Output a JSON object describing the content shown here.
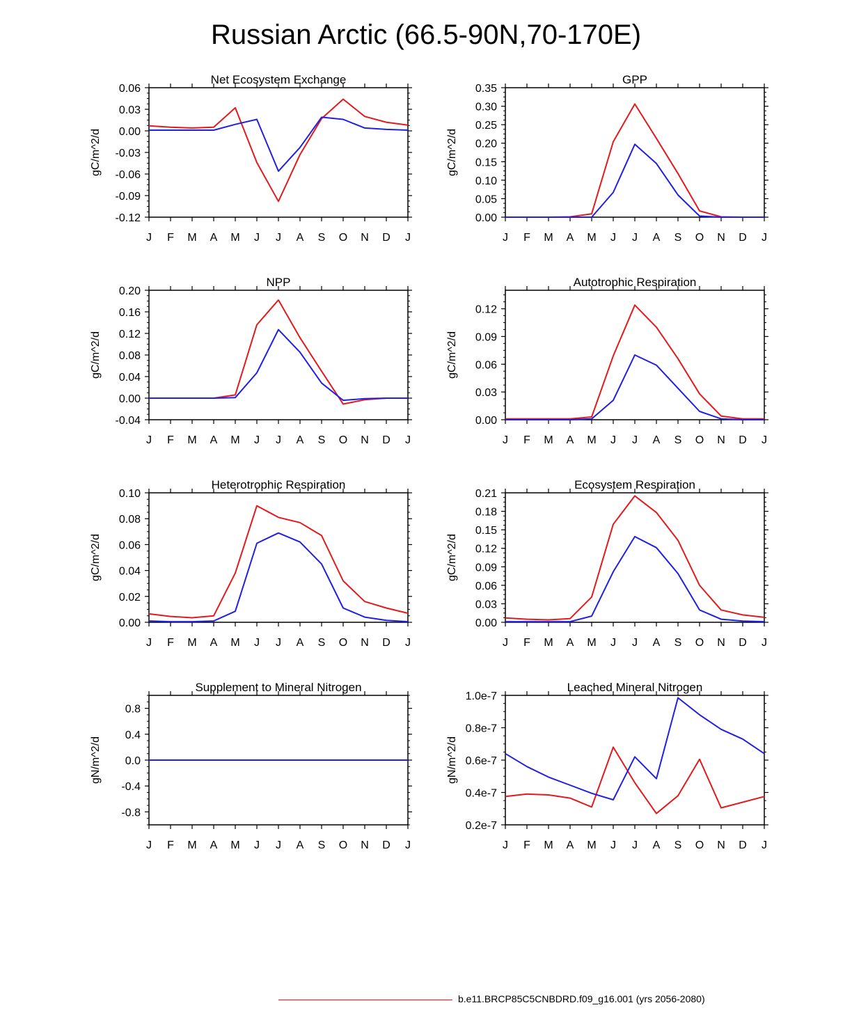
{
  "page": {
    "title": "Russian Arctic (66.5-90N,70-170E)",
    "legend": [
      {
        "label": "b.e11.BRCP85C5CNBDRD.f09_g16.001 (yrs 2056-2080)",
        "color": "#e31a1c"
      }
    ]
  },
  "chart_data": [
    {
      "type": "line",
      "title": "Net Ecosystem Exchange",
      "ylabel": "gC/m^2/d",
      "categories": [
        "J",
        "F",
        "M",
        "A",
        "M",
        "J",
        "J",
        "A",
        "S",
        "O",
        "N",
        "D",
        "J"
      ],
      "ylim": [
        -0.12,
        0.06
      ],
      "yticks": [
        -0.12,
        -0.09,
        -0.06,
        -0.03,
        0.0,
        0.03,
        0.06
      ],
      "ytick_labels": [
        "-0.12",
        "-0.09",
        "-0.06",
        "-0.03",
        "0.00",
        "0.03",
        "0.06"
      ],
      "series": [
        {
          "name": "red",
          "color": "#e31a1c",
          "values": [
            0.007,
            0.005,
            0.004,
            0.005,
            0.032,
            -0.044,
            -0.098,
            -0.033,
            0.017,
            0.044,
            0.02,
            0.012,
            0.008
          ]
        },
        {
          "name": "blue",
          "color": "#1f1fe6",
          "values": [
            0.001,
            0.001,
            0.001,
            0.001,
            0.009,
            0.016,
            -0.056,
            -0.023,
            0.019,
            0.016,
            0.004,
            0.002,
            0.001
          ]
        }
      ]
    },
    {
      "type": "line",
      "title": "GPP",
      "ylabel": "gC/m^2/d",
      "categories": [
        "J",
        "F",
        "M",
        "A",
        "M",
        "J",
        "J",
        "A",
        "S",
        "O",
        "N",
        "D",
        "J"
      ],
      "ylim": [
        0,
        0.35
      ],
      "yticks": [
        0,
        0.05,
        0.1,
        0.15,
        0.2,
        0.25,
        0.3,
        0.35
      ],
      "ytick_labels": [
        "0.00",
        "0.05",
        "0.10",
        "0.15",
        "0.20",
        "0.25",
        "0.30",
        "0.35"
      ],
      "series": [
        {
          "name": "red",
          "color": "#e31a1c",
          "values": [
            0,
            0,
            0,
            0.001,
            0.009,
            0.204,
            0.306,
            0.213,
            0.118,
            0.017,
            0.001,
            0,
            0
          ]
        },
        {
          "name": "blue",
          "color": "#1f1fe6",
          "values": [
            0,
            0,
            0,
            0,
            0,
            0.067,
            0.197,
            0.145,
            0.06,
            0.003,
            0,
            0,
            0
          ]
        }
      ]
    },
    {
      "type": "line",
      "title": "NPP",
      "ylabel": "gC/m^2/d",
      "categories": [
        "J",
        "F",
        "M",
        "A",
        "M",
        "J",
        "J",
        "A",
        "S",
        "O",
        "N",
        "D",
        "J"
      ],
      "ylim": [
        -0.04,
        0.2
      ],
      "yticks": [
        -0.04,
        0,
        0.04,
        0.08,
        0.12,
        0.16,
        0.2
      ],
      "ytick_labels": [
        "-0.04",
        "0.00",
        "0.04",
        "0.08",
        "0.12",
        "0.16",
        "0.20"
      ],
      "series": [
        {
          "name": "red",
          "color": "#e31a1c",
          "values": [
            0,
            0,
            0,
            0,
            0.006,
            0.136,
            0.182,
            0.112,
            0.05,
            -0.011,
            -0.003,
            0,
            0
          ]
        },
        {
          "name": "blue",
          "color": "#1f1fe6",
          "values": [
            0,
            0,
            0,
            0,
            0.001,
            0.047,
            0.127,
            0.085,
            0.028,
            -0.004,
            -0.001,
            0,
            0
          ]
        }
      ]
    },
    {
      "type": "line",
      "title": "Autotrophic Respiration",
      "ylabel": "gC/m^2/d",
      "categories": [
        "J",
        "F",
        "M",
        "A",
        "M",
        "J",
        "J",
        "A",
        "S",
        "O",
        "N",
        "D",
        "J"
      ],
      "ylim": [
        0,
        0.14
      ],
      "yticks": [
        0,
        0.03,
        0.06,
        0.09,
        0.12
      ],
      "ytick_labels": [
        "0.00",
        "0.03",
        "0.06",
        "0.09",
        "0.12"
      ],
      "series": [
        {
          "name": "red",
          "color": "#e31a1c",
          "values": [
            0.001,
            0.001,
            0.001,
            0.001,
            0.003,
            0.069,
            0.124,
            0.1,
            0.066,
            0.028,
            0.004,
            0.001,
            0.001
          ]
        },
        {
          "name": "blue",
          "color": "#1f1fe6",
          "values": [
            0,
            0,
            0,
            0,
            0.001,
            0.021,
            0.07,
            0.059,
            0.034,
            0.009,
            0.001,
            0,
            0
          ]
        }
      ]
    },
    {
      "type": "line",
      "title": "Heterotrophic Respiration",
      "ylabel": "gC/m^2/d",
      "categories": [
        "J",
        "F",
        "M",
        "A",
        "M",
        "J",
        "J",
        "A",
        "S",
        "O",
        "N",
        "D",
        "J"
      ],
      "ylim": [
        0,
        0.1
      ],
      "yticks": [
        0,
        0.02,
        0.04,
        0.06,
        0.08,
        0.1
      ],
      "ytick_labels": [
        "0.00",
        "0.02",
        "0.04",
        "0.06",
        "0.08",
        "0.10"
      ],
      "series": [
        {
          "name": "red",
          "color": "#e31a1c",
          "values": [
            0.0065,
            0.0045,
            0.0035,
            0.005,
            0.038,
            0.09,
            0.081,
            0.077,
            0.067,
            0.032,
            0.016,
            0.011,
            0.007
          ]
        },
        {
          "name": "blue",
          "color": "#1f1fe6",
          "values": [
            0.001,
            0.0005,
            0.0005,
            0.001,
            0.0085,
            0.061,
            0.069,
            0.062,
            0.045,
            0.011,
            0.004,
            0.0015,
            0.0005
          ]
        }
      ]
    },
    {
      "type": "line",
      "title": "Ecosystem Respiration",
      "ylabel": "gC/m^2/d",
      "categories": [
        "J",
        "F",
        "M",
        "A",
        "M",
        "J",
        "J",
        "A",
        "S",
        "O",
        "N",
        "D",
        "J"
      ],
      "ylim": [
        0,
        0.21
      ],
      "yticks": [
        0,
        0.03,
        0.06,
        0.09,
        0.12,
        0.15,
        0.18,
        0.21
      ],
      "ytick_labels": [
        "0.00",
        "0.03",
        "0.06",
        "0.09",
        "0.12",
        "0.15",
        "0.18",
        "0.21"
      ],
      "series": [
        {
          "name": "red",
          "color": "#e31a1c",
          "values": [
            0.007,
            0.005,
            0.004,
            0.006,
            0.041,
            0.159,
            0.205,
            0.178,
            0.133,
            0.06,
            0.02,
            0.012,
            0.008
          ]
        },
        {
          "name": "blue",
          "color": "#1f1fe6",
          "values": [
            0.001,
            0.001,
            0.001,
            0.001,
            0.01,
            0.082,
            0.139,
            0.121,
            0.079,
            0.02,
            0.005,
            0.002,
            0.001
          ]
        }
      ]
    },
    {
      "type": "line",
      "title": "Supplement to Mineral Nitrogen",
      "ylabel": "gN/m^2/d",
      "categories": [
        "J",
        "F",
        "M",
        "A",
        "M",
        "J",
        "J",
        "A",
        "S",
        "O",
        "N",
        "D",
        "J"
      ],
      "ylim": [
        -1.0,
        1.0
      ],
      "yticks": [
        -0.8,
        -0.4,
        0,
        0.4,
        0.8
      ],
      "ytick_labels": [
        "-0.8",
        "-0.4",
        "0.0",
        "0.4",
        "0.8"
      ],
      "series": [
        {
          "name": "red",
          "color": "#e31a1c",
          "values": [
            0,
            0,
            0,
            0,
            0,
            0,
            0,
            0,
            0,
            0,
            0,
            0,
            0
          ]
        },
        {
          "name": "blue",
          "color": "#1f1fe6",
          "values": [
            0,
            0,
            0,
            0,
            0,
            0,
            0,
            0,
            0,
            0,
            0,
            0,
            0
          ]
        }
      ]
    },
    {
      "type": "line",
      "title": "Leached Mineral Nitrogen",
      "ylabel": "gN/m^2/d",
      "categories": [
        "J",
        "F",
        "M",
        "A",
        "M",
        "J",
        "J",
        "A",
        "S",
        "O",
        "N",
        "D",
        "J"
      ],
      "ylim": [
        2e-08,
        1e-07
      ],
      "yticks": [
        2e-08,
        4e-08,
        6e-08,
        8e-08,
        1e-07
      ],
      "ytick_labels": [
        "0.2e-7",
        "0.4e-7",
        "0.6e-7",
        "0.8e-7",
        "1.0e-7"
      ],
      "series": [
        {
          "name": "red",
          "color": "#e31a1c",
          "values": [
            3.75e-08,
            3.9e-08,
            3.85e-08,
            3.65e-08,
            3.1e-08,
            6.8e-08,
            4.6e-08,
            2.7e-08,
            3.8e-08,
            6.05e-08,
            3.05e-08,
            3.4e-08,
            3.75e-08
          ]
        },
        {
          "name": "blue",
          "color": "#1f1fe6",
          "values": [
            6.4e-08,
            5.6e-08,
            4.95e-08,
            4.45e-08,
            3.95e-08,
            3.55e-08,
            6.2e-08,
            4.85e-08,
            9.85e-08,
            8.8e-08,
            7.9e-08,
            7.3e-08,
            6.4e-08
          ]
        }
      ]
    }
  ]
}
